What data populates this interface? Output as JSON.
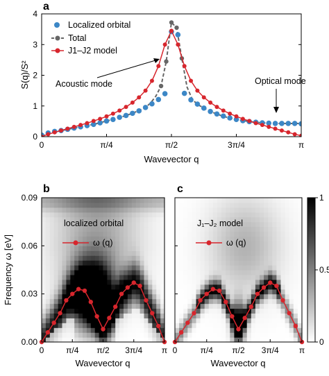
{
  "panels": {
    "a": {
      "label": "a"
    },
    "b": {
      "label": "b",
      "legend_text": "localized orbital",
      "legend_func": "ω (q)"
    },
    "c": {
      "label": "c",
      "legend_text": "J₁–J₂ model",
      "legend_func": "ω (q)"
    }
  },
  "colors": {
    "localized": "#3c87c6",
    "total": "#666666",
    "model": "#d7262d"
  },
  "chart_data": [
    {
      "type": "line",
      "panel": "a",
      "xlabel": "Wavevector q",
      "ylabel": "S(q)/S²",
      "xlim": [
        0,
        1
      ],
      "ylim": [
        0,
        4
      ],
      "x_ticks": [
        "0",
        "π/4",
        "π/2",
        "3π/4",
        "π"
      ],
      "y_ticks": [
        "0",
        "1",
        "2",
        "3",
        "4"
      ],
      "x_unit": "fraction of π",
      "legend": [
        "Localized orbital",
        "Total",
        "J1–J2 model"
      ],
      "legend_placement": "top-left",
      "annotations": [
        "Acoustic mode",
        "Optical mode"
      ],
      "series": [
        {
          "name": "Localized orbital",
          "x": [
            0.0,
            0.025,
            0.05,
            0.075,
            0.1,
            0.125,
            0.15,
            0.175,
            0.2,
            0.225,
            0.25,
            0.275,
            0.3,
            0.325,
            0.35,
            0.375,
            0.4,
            0.425,
            0.45,
            0.475,
            0.5,
            0.525,
            0.55,
            0.575,
            0.6,
            0.625,
            0.65,
            0.675,
            0.7,
            0.725,
            0.75,
            0.775,
            0.8,
            0.825,
            0.85,
            0.875,
            0.9,
            0.925,
            0.95,
            0.975,
            1.0
          ],
          "values": [
            0.05,
            0.12,
            0.17,
            0.2,
            0.24,
            0.28,
            0.32,
            0.36,
            0.4,
            0.45,
            0.51,
            0.56,
            0.63,
            0.69,
            0.76,
            0.84,
            0.95,
            1.07,
            1.21,
            1.4,
            3.42,
            3.32,
            1.41,
            1.2,
            1.06,
            0.93,
            0.82,
            0.74,
            0.67,
            0.61,
            0.56,
            0.52,
            0.49,
            0.47,
            0.45,
            0.44,
            0.43,
            0.43,
            0.43,
            0.43,
            0.42
          ]
        },
        {
          "name": "Total",
          "x": [
            0.0,
            0.05,
            0.1,
            0.15,
            0.2,
            0.25,
            0.3,
            0.35,
            0.4,
            0.42,
            0.44,
            0.46,
            0.48,
            0.5,
            0.52,
            0.54,
            0.56,
            0.58,
            0.6,
            0.65,
            0.7,
            0.75,
            0.8,
            0.85,
            0.9,
            0.95,
            1.0
          ],
          "values": [
            0.02,
            0.15,
            0.24,
            0.32,
            0.4,
            0.51,
            0.62,
            0.76,
            0.95,
            1.1,
            1.32,
            1.65,
            2.45,
            3.72,
            3.55,
            2.55,
            1.62,
            1.22,
            1.05,
            0.82,
            0.66,
            0.56,
            0.49,
            0.45,
            0.43,
            0.43,
            0.43
          ]
        },
        {
          "name": "J1–J2 model",
          "x": [
            0.0,
            0.025,
            0.05,
            0.075,
            0.1,
            0.125,
            0.15,
            0.175,
            0.2,
            0.225,
            0.25,
            0.275,
            0.3,
            0.325,
            0.35,
            0.375,
            0.4,
            0.425,
            0.45,
            0.475,
            0.5,
            0.525,
            0.55,
            0.575,
            0.6,
            0.625,
            0.65,
            0.675,
            0.7,
            0.725,
            0.75,
            0.775,
            0.8,
            0.825,
            0.85,
            0.875,
            0.9,
            0.925,
            0.95,
            0.975,
            1.0
          ],
          "values": [
            0.0,
            0.08,
            0.14,
            0.2,
            0.26,
            0.32,
            0.38,
            0.44,
            0.51,
            0.58,
            0.66,
            0.75,
            0.85,
            0.97,
            1.11,
            1.28,
            1.5,
            1.82,
            2.3,
            3.0,
            3.45,
            3.0,
            2.3,
            1.82,
            1.5,
            1.28,
            1.11,
            0.97,
            0.85,
            0.75,
            0.66,
            0.58,
            0.51,
            0.44,
            0.38,
            0.32,
            0.26,
            0.2,
            0.14,
            0.08,
            0.03
          ]
        }
      ]
    },
    {
      "type": "heatmap",
      "panel": "b",
      "xlabel": "Wavevector q",
      "ylabel": "Frequency ω [eV]",
      "xlim": [
        0,
        1
      ],
      "ylim": [
        0,
        0.09
      ],
      "x_ticks": [
        "0",
        "π/4",
        "π/2",
        "3π/4",
        "π"
      ],
      "y_ticks": [
        "0.00",
        "0.03",
        "0.06",
        "0.09"
      ],
      "series": [
        {
          "name": "ω (q)",
          "x": [
            0.0,
            0.05,
            0.1,
            0.15,
            0.2,
            0.25,
            0.3,
            0.35,
            0.4,
            0.45,
            0.5,
            0.55,
            0.6,
            0.65,
            0.7,
            0.75,
            0.8,
            0.85,
            0.9,
            0.95,
            1.0
          ],
          "values": [
            0.0,
            0.006,
            0.012,
            0.018,
            0.026,
            0.03,
            0.033,
            0.032,
            0.025,
            0.016,
            0.008,
            0.015,
            0.022,
            0.03,
            0.034,
            0.037,
            0.035,
            0.026,
            0.018,
            0.01,
            0.0
          ]
        }
      ]
    },
    {
      "type": "heatmap",
      "panel": "c",
      "xlabel": "Wavevector q",
      "xlim": [
        0,
        1
      ],
      "ylim": [
        0,
        0.09
      ],
      "x_ticks": [
        "0",
        "π/4",
        "π/2",
        "3π/4",
        "π"
      ],
      "colorbar_ticks": [
        "0",
        "0.5",
        "1"
      ],
      "series": [
        {
          "name": "ω (q)",
          "x": [
            0.0,
            0.05,
            0.1,
            0.15,
            0.2,
            0.25,
            0.3,
            0.35,
            0.4,
            0.45,
            0.5,
            0.55,
            0.6,
            0.65,
            0.7,
            0.75,
            0.8,
            0.85,
            0.9,
            0.95,
            1.0
          ],
          "values": [
            0.0,
            0.006,
            0.012,
            0.018,
            0.026,
            0.03,
            0.033,
            0.032,
            0.025,
            0.016,
            0.008,
            0.015,
            0.022,
            0.03,
            0.034,
            0.037,
            0.035,
            0.026,
            0.018,
            0.01,
            0.0
          ]
        }
      ]
    }
  ]
}
